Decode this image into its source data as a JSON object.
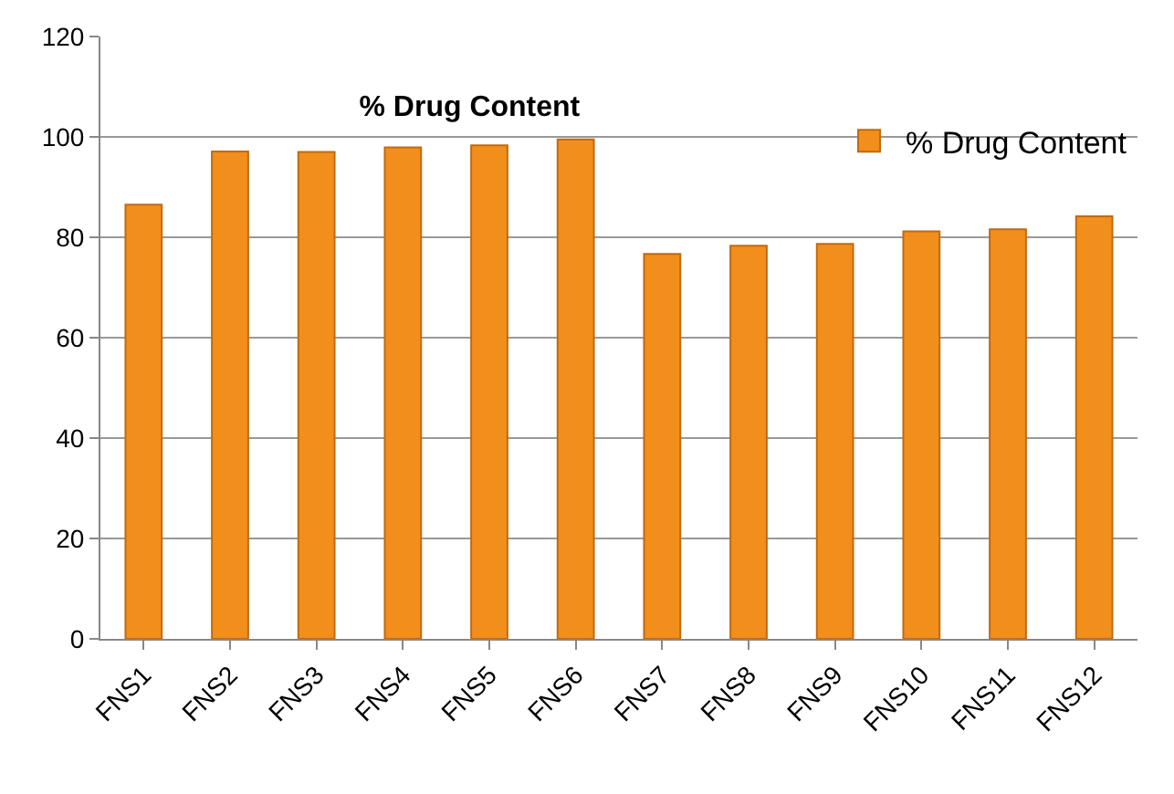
{
  "chart_data": {
    "type": "bar",
    "title": "% Drug Content",
    "categories": [
      "FNS1",
      "FNS2",
      "FNS3",
      "FNS4",
      "FNS5",
      "FNS6",
      "FNS7",
      "FNS8",
      "FNS9",
      "FNS10",
      "FNS11",
      "FNS12"
    ],
    "series": [
      {
        "name": "% Drug Content",
        "color": "#f28e1c",
        "values": [
          86.5,
          97.1,
          97,
          97.9,
          98.3,
          99.5,
          76.7,
          78.3,
          78.7,
          81.2,
          81.6,
          84.2
        ]
      }
    ],
    "ylim": [
      0,
      120
    ],
    "yticks": [
      0,
      20,
      40,
      60,
      80,
      100,
      120
    ],
    "grid": "y",
    "legend": "top right"
  }
}
